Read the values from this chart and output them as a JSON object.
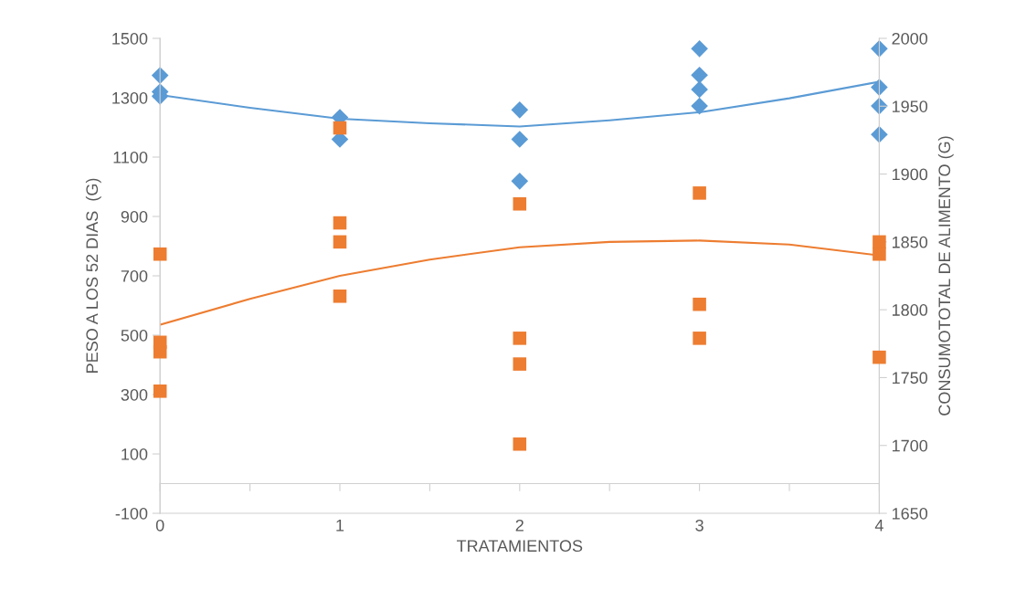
{
  "chart_data": {
    "type": "scatter",
    "xlabel": "TRATAMIENTOS",
    "ylabel": "PESO A LOS 52 DIAS  (G)",
    "y2label": "CONSUMOTOTAL DE ALIMENTO (G)",
    "xlim": [
      0,
      4
    ],
    "xticks": [
      0,
      {
        "value": 0.5,
        "label": null
      },
      1,
      {
        "value": 1.5,
        "label": null
      },
      2,
      {
        "value": 2.5,
        "label": null
      },
      3,
      {
        "value": 3.5,
        "label": null
      },
      4
    ],
    "ylim": [
      -100,
      1500
    ],
    "yticks": [
      -100,
      100,
      300,
      500,
      700,
      900,
      1100,
      1300,
      1500
    ],
    "y2lim": [
      1650,
      2000
    ],
    "y2ticks": [
      1650,
      1700,
      1750,
      1800,
      1850,
      1900,
      1950,
      2000
    ],
    "grid": false,
    "legend": false,
    "series": [
      {
        "marker": "diamond",
        "color": "#5b9bd5",
        "x": [
          0,
          0,
          0,
          1,
          1,
          2,
          2,
          2,
          3,
          3,
          3,
          3,
          4,
          4,
          4,
          4
        ],
        "values": [
          1375,
          1320,
          1305,
          1234,
          1160,
          1259,
          1160,
          1019,
          1465,
          1376,
          1328,
          1272,
          1465,
          1335,
          1272,
          1176
        ]
      },
      {
        "marker": "square",
        "color": "#ed7d31",
        "axis": "y2",
        "x": [
          0,
          0,
          0,
          0,
          1,
          1,
          1,
          1,
          2,
          2,
          2,
          2,
          3,
          3,
          3,
          4,
          4,
          4
        ],
        "values": [
          1841,
          1776,
          1769,
          1740,
          1934,
          1864,
          1850,
          1810,
          1878,
          1779,
          1760,
          1701,
          1886,
          1804,
          1779,
          1850,
          1841,
          1765
        ]
      },
      {
        "type": "line",
        "marker": "none",
        "color": "#5b9bd5",
        "x": [
          0,
          0.5,
          1,
          1.5,
          2,
          2.5,
          3,
          3.5,
          4
        ],
        "values": [
          1309,
          1266,
          1229,
          1214,
          1203,
          1224,
          1251,
          1298,
          1354
        ]
      },
      {
        "type": "line",
        "marker": "none",
        "color": "#ed7d31",
        "axis": "y2",
        "x": [
          0,
          0.5,
          1,
          1.5,
          2,
          2.5,
          3,
          3.5,
          4
        ],
        "values": [
          1789,
          1808,
          1825,
          1837,
          1846,
          1850,
          1851,
          1848,
          1840
        ]
      }
    ]
  }
}
